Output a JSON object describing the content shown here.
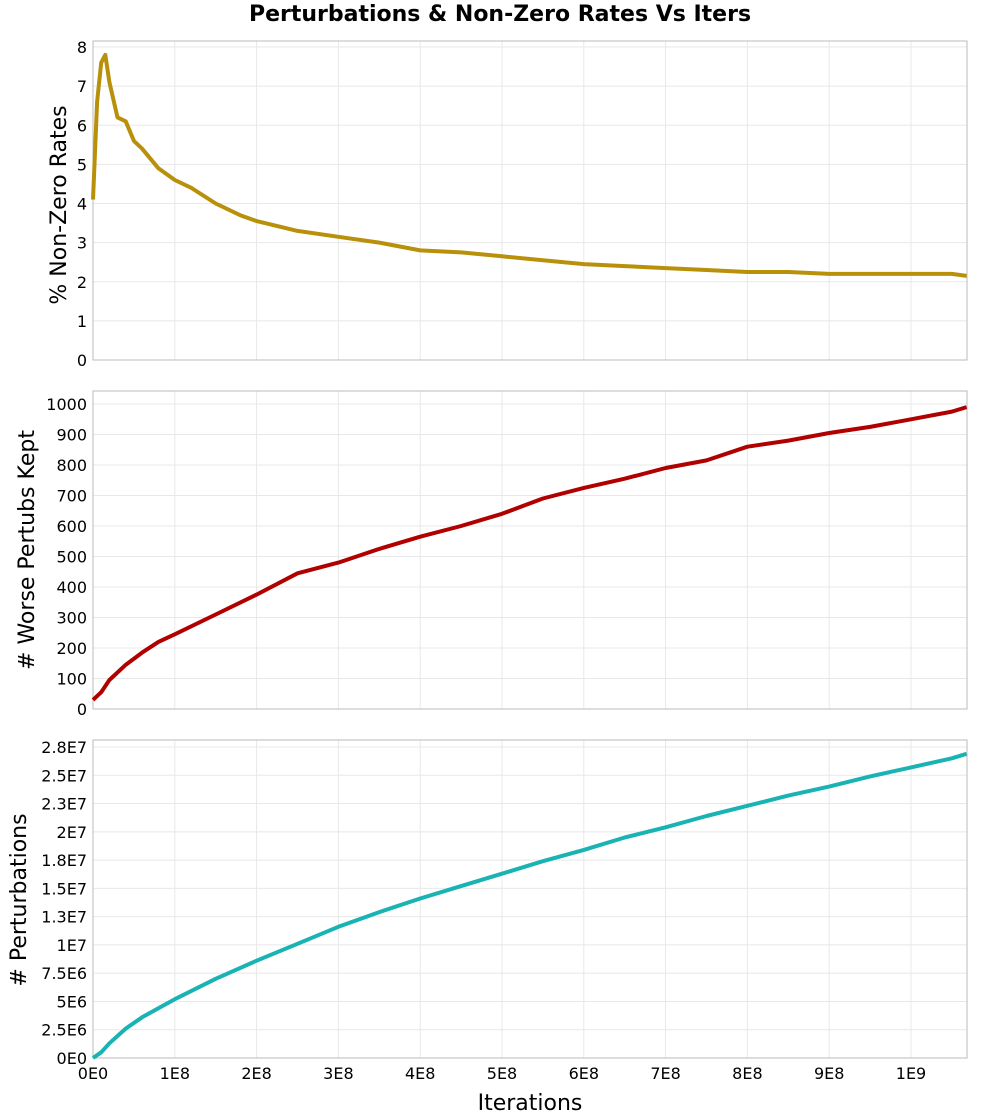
{
  "title": "Perturbations & Non-Zero Rates Vs Iters",
  "xlabel": "Iterations",
  "x_tick_labels": [
    "0E0",
    "1E8",
    "2E8",
    "3E8",
    "4E8",
    "5E8",
    "6E8",
    "7E8",
    "8E8",
    "9E8",
    "1E9"
  ],
  "colors": {
    "nonzero": "#b8900a",
    "worse": "#b00000",
    "perturb": "#1ab3b3",
    "grid": "#e8e8e8",
    "frame": "#bbbbbb"
  },
  "chart_data": [
    {
      "type": "line",
      "title": "Perturbations & Non-Zero Rates Vs Iters",
      "xlabel": "",
      "ylabel": "% Non-Zero Rates",
      "ylim": [
        0,
        8.2
      ],
      "xlim": [
        0,
        1068000000.0
      ],
      "grid": true,
      "y_tick_labels": [
        "0",
        "1",
        "2",
        "3",
        "4",
        "5",
        "6",
        "7",
        "8"
      ],
      "x": [
        0,
        5000000.0,
        10000000.0,
        15000000.0,
        20000000.0,
        30000000.0,
        40000000.0,
        50000000.0,
        60000000.0,
        80000000.0,
        100000000.0,
        120000000.0,
        150000000.0,
        180000000.0,
        200000000.0,
        250000000.0,
        300000000.0,
        350000000.0,
        400000000.0,
        450000000.0,
        500000000.0,
        550000000.0,
        600000000.0,
        650000000.0,
        700000000.0,
        750000000.0,
        800000000.0,
        850000000.0,
        900000000.0,
        950000000.0,
        1000000000.0,
        1050000000.0,
        1068000000.0
      ],
      "series": [
        {
          "name": "% Non-Zero Rates",
          "values": [
            4.1,
            6.6,
            7.6,
            7.8,
            7.1,
            6.2,
            6.1,
            5.6,
            5.4,
            4.9,
            4.6,
            4.4,
            4.0,
            3.7,
            3.55,
            3.3,
            3.15,
            3.0,
            2.8,
            2.75,
            2.65,
            2.55,
            2.45,
            2.4,
            2.35,
            2.3,
            2.25,
            2.25,
            2.2,
            2.2,
            2.2,
            2.2,
            2.15
          ]
        }
      ]
    },
    {
      "type": "line",
      "xlabel": "",
      "ylabel": "# Worse Pertubs Kept",
      "ylim": [
        0,
        1040
      ],
      "xlim": [
        0,
        1068000000.0
      ],
      "grid": true,
      "y_tick_labels": [
        "0",
        "100",
        "200",
        "300",
        "400",
        "500",
        "600",
        "700",
        "800",
        "900",
        "1000"
      ],
      "x": [
        0,
        10000000.0,
        20000000.0,
        40000000.0,
        60000000.0,
        80000000.0,
        100000000.0,
        150000000.0,
        200000000.0,
        250000000.0,
        300000000.0,
        350000000.0,
        400000000.0,
        450000000.0,
        500000000.0,
        550000000.0,
        600000000.0,
        650000000.0,
        700000000.0,
        750000000.0,
        800000000.0,
        850000000.0,
        900000000.0,
        950000000.0,
        1000000000.0,
        1050000000.0,
        1068000000.0
      ],
      "series": [
        {
          "name": "# Worse Pertubs Kept",
          "values": [
            30,
            55,
            95,
            145,
            185,
            220,
            245,
            310,
            375,
            445,
            480,
            525,
            565,
            600,
            640,
            690,
            725,
            755,
            790,
            815,
            860,
            880,
            905,
            925,
            950,
            975,
            990
          ]
        }
      ]
    },
    {
      "type": "line",
      "xlabel": "Iterations",
      "ylabel": "# Perturbations",
      "ylim": [
        0,
        28500000
      ],
      "xlim": [
        0,
        1068000000.0
      ],
      "grid": true,
      "y_tick_labels": [
        "0E0",
        "2.5E6",
        "5E6",
        "7.5E6",
        "1E7",
        "1.3E7",
        "1.5E7",
        "1.8E7",
        "2E7",
        "2.3E7",
        "2.5E7",
        "2.8E7"
      ],
      "x": [
        0,
        10000000.0,
        20000000.0,
        40000000.0,
        60000000.0,
        80000000.0,
        100000000.0,
        150000000.0,
        200000000.0,
        250000000.0,
        300000000.0,
        350000000.0,
        400000000.0,
        450000000.0,
        500000000.0,
        550000000.0,
        600000000.0,
        650000000.0,
        700000000.0,
        750000000.0,
        800000000.0,
        850000000.0,
        900000000.0,
        950000000.0,
        1000000000.0,
        1050000000.0,
        1068000000.0
      ],
      "series": [
        {
          "name": "# Perturbations",
          "values": [
            0,
            500000,
            1300000,
            2600000,
            3600000,
            4400000,
            5200000,
            7000000,
            8600000,
            10100000,
            11600000,
            12900000,
            14100000,
            15200000,
            16300000,
            17400000,
            18400000,
            19500000,
            20400000,
            21400000,
            22300000,
            23200000,
            24000000,
            24900000,
            25700000,
            26500000,
            26900000
          ]
        }
      ]
    }
  ]
}
